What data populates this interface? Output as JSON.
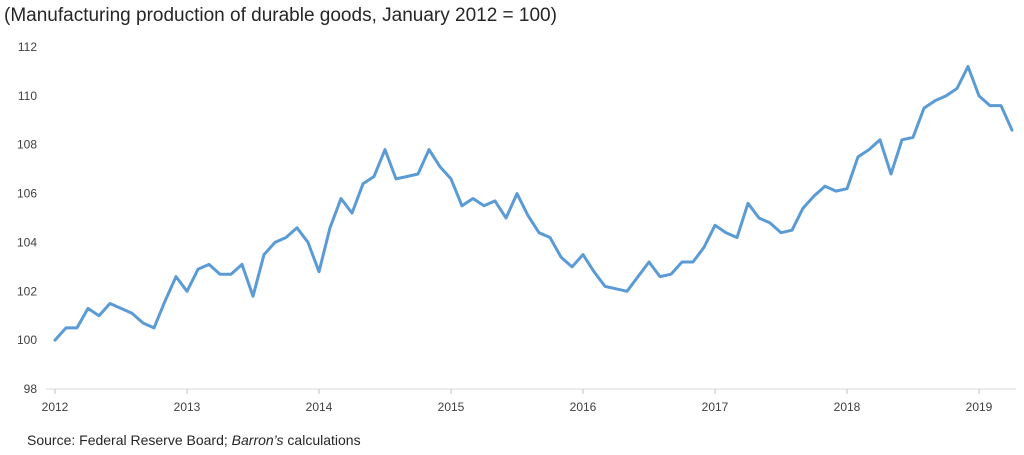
{
  "chart_data": {
    "type": "line",
    "title": "(Manufacturing production of durable goods, January 2012 = 100)",
    "xlabel": "",
    "ylabel": "",
    "ylim": [
      98,
      112
    ],
    "yticks": [
      "98",
      "100",
      "102",
      "104",
      "106",
      "108",
      "110",
      "112"
    ],
    "xticks": [
      "2012",
      "2013",
      "2014",
      "2015",
      "2016",
      "2017",
      "2018",
      "2019"
    ],
    "grid": false,
    "line_color": "#5b9bd5",
    "series": [
      {
        "values": [
          100.0,
          100.5,
          100.5,
          101.3,
          101.0,
          101.5,
          101.3,
          101.1,
          100.7,
          100.5,
          101.6,
          102.6,
          102.0,
          102.9,
          103.1,
          102.7,
          102.7,
          103.1,
          101.8,
          103.5,
          104.0,
          104.2,
          104.6,
          104.0,
          102.8,
          104.6,
          105.8,
          105.2,
          106.4,
          106.7,
          107.8,
          106.6,
          106.7,
          106.8,
          107.8,
          107.1,
          106.6,
          105.5,
          105.8,
          105.5,
          105.7,
          105.0,
          106.0,
          105.1,
          104.4,
          104.2,
          103.4,
          103.0,
          103.5,
          102.8,
          102.2,
          102.1,
          102.0,
          102.6,
          103.2,
          102.6,
          102.7,
          103.2,
          103.2,
          103.8,
          104.7,
          104.4,
          104.2,
          105.6,
          105.0,
          104.8,
          104.4,
          104.5,
          105.4,
          105.9,
          106.3,
          106.1,
          106.2,
          107.5,
          107.8,
          108.2,
          106.8,
          108.2,
          108.3,
          109.5,
          109.8,
          110.0,
          110.3,
          111.2,
          110.0,
          109.6,
          109.6,
          108.6
        ]
      }
    ]
  },
  "source": {
    "prefix": "Source: Federal Reserve Board; ",
    "italic": "Barron’s",
    "suffix": " calculations"
  }
}
